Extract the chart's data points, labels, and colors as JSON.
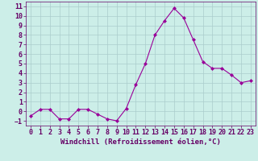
{
  "x": [
    0,
    1,
    2,
    3,
    4,
    5,
    6,
    7,
    8,
    9,
    10,
    11,
    12,
    13,
    14,
    15,
    16,
    17,
    18,
    19,
    20,
    21,
    22,
    23
  ],
  "y": [
    -0.5,
    0.2,
    0.2,
    -0.8,
    -0.8,
    0.2,
    0.2,
    -0.3,
    -0.8,
    -1.0,
    0.3,
    2.8,
    5.0,
    8.0,
    9.5,
    10.8,
    9.8,
    7.5,
    5.2,
    4.5,
    4.5,
    3.8,
    3.0,
    3.2
  ],
  "line_color": "#990099",
  "marker": "D",
  "marker_size": 2,
  "bg_color": "#cceee8",
  "grid_color": "#aacccc",
  "xlabel": "Windchill (Refroidissement éolien,°C)",
  "xlim": [
    -0.5,
    23.5
  ],
  "ylim": [
    -1.5,
    11.5
  ],
  "yticks": [
    -1,
    0,
    1,
    2,
    3,
    4,
    5,
    6,
    7,
    8,
    9,
    10,
    11
  ],
  "xticks": [
    0,
    1,
    2,
    3,
    4,
    5,
    6,
    7,
    8,
    9,
    10,
    11,
    12,
    13,
    14,
    15,
    16,
    17,
    18,
    19,
    20,
    21,
    22,
    23
  ],
  "tick_color": "#660066",
  "label_color": "#660066",
  "axis_color": "#660066",
  "xlabel_fontsize": 6.5,
  "tick_fontsize": 6.0
}
